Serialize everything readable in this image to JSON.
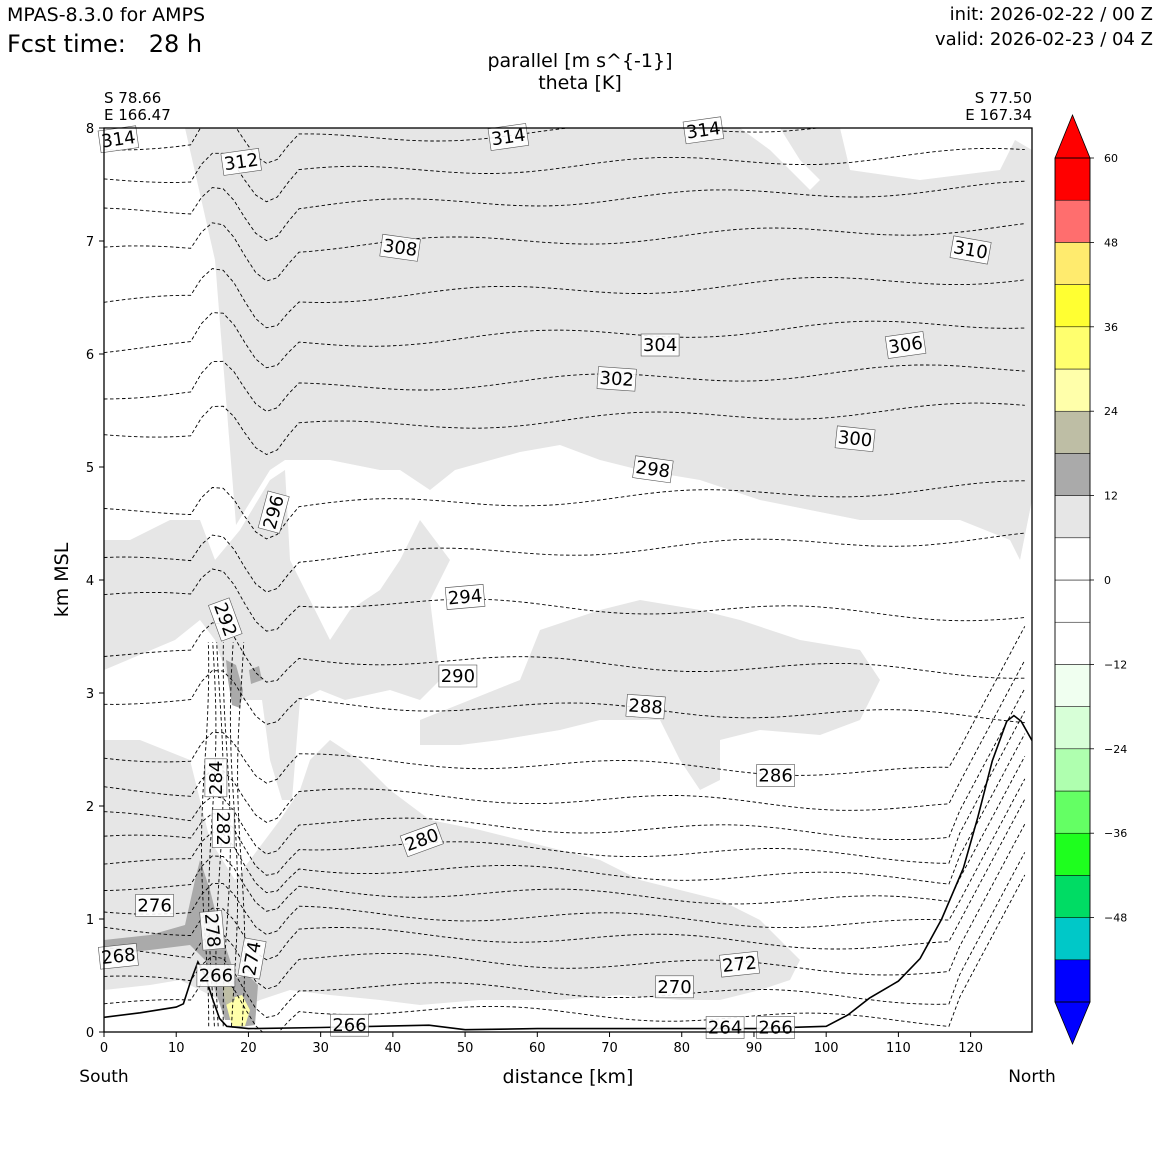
{
  "header": {
    "model": "MPAS-8.3.0 for AMPS",
    "fcst_label": "Fcst time:",
    "fcst_value": "28 h",
    "init": "init: 2026-02-22 / 00 Z",
    "valid": "valid: 2026-02-23 / 04 Z"
  },
  "chart_data": {
    "type": "cross-section",
    "title_line1": "parallel [m s^{-1}]",
    "title_line2": "theta [K]",
    "xlabel": "distance [km]",
    "ylabel": "km MSL",
    "xlim": [
      0,
      128.5
    ],
    "ylim": [
      0,
      8
    ],
    "x_ticks": [
      "0",
      "10",
      "20",
      "30",
      "40",
      "50",
      "60",
      "70",
      "80",
      "90",
      "100",
      "110",
      "120"
    ],
    "y_ticks": [
      "0",
      "1",
      "2",
      "3",
      "4",
      "5",
      "6",
      "7",
      "8"
    ],
    "left_end": {
      "lat": "S 78.66",
      "lon": "E 166.47",
      "label": "South"
    },
    "right_end": {
      "lat": "S 77.50",
      "lon": "E 167.34",
      "label": "North"
    },
    "colorbar": {
      "levels": [
        -60,
        -54,
        -48,
        -42,
        -36,
        -30,
        -24,
        -18,
        -12,
        -6,
        0,
        6,
        12,
        18,
        24,
        30,
        36,
        42,
        48,
        54,
        60
      ],
      "tick_labels": [
        "60",
        "48",
        "36",
        "24",
        "12",
        "0",
        "−12",
        "−24",
        "−36",
        "−48"
      ],
      "colors": [
        "#0000ff",
        "#00c8c8",
        "#00dc64",
        "#1eff1e",
        "#64ff64",
        "#afffaf",
        "#d7ffd7",
        "#f0fff0",
        "#ffffff",
        "#ffffff",
        "#e6e6e6",
        "#aaaaaa",
        "#bebea5",
        "#ffffaa",
        "#ffff6e",
        "#ffff32",
        "#ffeb6e",
        "#ff6e6e",
        "#ff0000"
      ]
    },
    "terrain": [
      [
        0,
        0.13
      ],
      [
        5,
        0.17
      ],
      [
        10,
        0.22
      ],
      [
        11,
        0.25
      ],
      [
        12,
        0.45
      ],
      [
        13,
        0.62
      ],
      [
        14,
        0.5
      ],
      [
        15,
        0.3
      ],
      [
        16,
        0.12
      ],
      [
        17,
        0.05
      ],
      [
        20,
        0.03
      ],
      [
        30,
        0.04
      ],
      [
        45,
        0.06
      ],
      [
        50,
        0.02
      ],
      [
        60,
        0.03
      ],
      [
        70,
        0.03
      ],
      [
        80,
        0.03
      ],
      [
        90,
        0.03
      ],
      [
        100,
        0.05
      ],
      [
        103,
        0.15
      ],
      [
        106,
        0.3
      ],
      [
        110,
        0.45
      ],
      [
        113,
        0.65
      ],
      [
        116,
        1.0
      ],
      [
        119,
        1.45
      ],
      [
        121,
        1.9
      ],
      [
        123,
        2.4
      ],
      [
        125,
        2.75
      ],
      [
        126,
        2.8
      ],
      [
        127,
        2.75
      ],
      [
        128.5,
        2.58
      ]
    ],
    "theta_contours": [
      {
        "value": 266,
        "label": "266",
        "label_x": 34,
        "label_y": 0.06
      },
      {
        "value": 264,
        "label": "264",
        "label_x": 86,
        "label_y": 0.04
      },
      {
        "value": 266,
        "label": "266",
        "label_x": 93,
        "label_y": 0.04
      },
      {
        "value": 268,
        "label": "268",
        "label_x": 2,
        "label_y": 0.67
      },
      {
        "value": 270,
        "label": "270",
        "label_x": 79,
        "label_y": 0.4
      },
      {
        "value": 272,
        "label": "272",
        "label_x": 88,
        "label_y": 0.6
      },
      {
        "value": 274,
        "label": "274",
        "label_x": 20.5,
        "label_y": 0.65
      },
      {
        "value": 276,
        "label": "276",
        "label_x": 7,
        "label_y": 1.12
      },
      {
        "value": 278,
        "label": "278",
        "label_x": 15,
        "label_y": 0.9
      },
      {
        "value": 266,
        "label": "266",
        "label_x": 15.5,
        "label_y": 0.5
      },
      {
        "value": 280,
        "label": "280",
        "label_x": 44,
        "label_y": 1.7
      },
      {
        "value": 282,
        "label": "282",
        "label_x": 16.5,
        "label_y": 1.8
      },
      {
        "value": 284,
        "label": "284",
        "label_x": 15.5,
        "label_y": 2.25
      },
      {
        "value": 286,
        "label": "286",
        "label_x": 93,
        "label_y": 2.27
      },
      {
        "value": 288,
        "label": "288",
        "label_x": 75,
        "label_y": 2.88
      },
      {
        "value": 290,
        "label": "290",
        "label_x": 49,
        "label_y": 3.15
      },
      {
        "value": 292,
        "label": "292",
        "label_x": 16.8,
        "label_y": 3.65
      },
      {
        "value": 294,
        "label": "294",
        "label_x": 50,
        "label_y": 3.85
      },
      {
        "value": 296,
        "label": "296",
        "label_x": 23.5,
        "label_y": 4.6
      },
      {
        "value": 298,
        "label": "298",
        "label_x": 76,
        "label_y": 4.98
      },
      {
        "value": 300,
        "label": "300",
        "label_x": 104,
        "label_y": 5.25
      },
      {
        "value": 302,
        "label": "302",
        "label_x": 71,
        "label_y": 5.78
      },
      {
        "value": 304,
        "label": "304",
        "label_x": 77,
        "label_y": 6.08
      },
      {
        "value": 306,
        "label": "306",
        "label_x": 111,
        "label_y": 6.08
      },
      {
        "value": 308,
        "label": "308",
        "label_x": 41,
        "label_y": 6.94
      },
      {
        "value": 310,
        "label": "310",
        "label_x": 120,
        "label_y": 6.92
      },
      {
        "value": 312,
        "label": "312",
        "label_x": 19,
        "label_y": 7.7
      },
      {
        "value": 314,
        "label": "314",
        "label_x": 2,
        "label_y": 7.9
      },
      {
        "value": 314,
        "label": "314",
        "label_x": 56,
        "label_y": 7.92
      },
      {
        "value": 314,
        "label": "314",
        "label_x": 83,
        "label_y": 7.98
      }
    ]
  }
}
